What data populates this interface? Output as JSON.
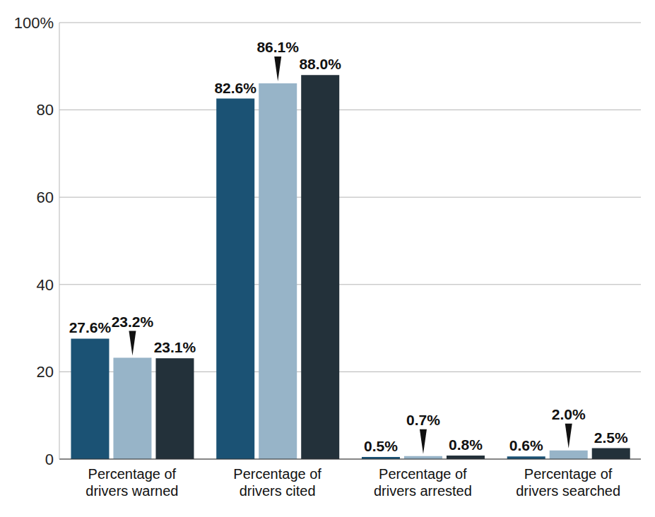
{
  "chart_data": {
    "type": "bar",
    "categories": [
      "Percentage of drivers warned",
      "Percentage of drivers cited",
      "Percentage of drivers arrested",
      "Percentage of drivers searched"
    ],
    "series": [
      {
        "color": "#1b5274",
        "values": [
          27.6,
          82.6,
          0.5,
          0.6
        ],
        "value_labels": [
          "27.6%",
          "82.6%",
          "0.5%",
          "0.6%"
        ]
      },
      {
        "color": "#97b4c8",
        "values": [
          23.2,
          86.1,
          0.7,
          2.0
        ],
        "value_labels": [
          "23.2%",
          "86.1%",
          "0.7%",
          "2.0%"
        ]
      },
      {
        "color": "#23313a",
        "values": [
          23.1,
          88.0,
          0.8,
          2.5
        ],
        "value_labels": [
          "23.1%",
          "88.0%",
          "0.8%",
          "2.5%"
        ]
      }
    ],
    "ylim": [
      0,
      100
    ],
    "yticks": [
      0,
      20,
      40,
      60,
      80,
      {
        "value": 100,
        "label": "100%"
      }
    ],
    "grid": true,
    "data_labels": true
  }
}
